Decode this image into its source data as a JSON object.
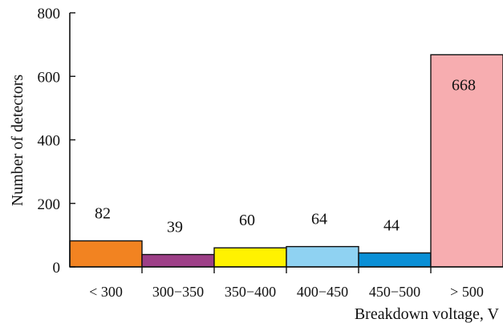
{
  "chart_data": {
    "type": "bar",
    "title": "",
    "xlabel": "Breakdown voltage, V",
    "ylabel": "Number of detectors",
    "ylim": [
      0,
      800
    ],
    "yticks": [
      "0",
      "200",
      "400",
      "600",
      "800"
    ],
    "categories": [
      "< 300",
      "300−350",
      "350−400",
      "400−450",
      "450−500",
      "> 500"
    ],
    "values": [
      82,
      39,
      60,
      64,
      44,
      668
    ],
    "data_labels": [
      "82",
      "39",
      "60",
      "64",
      "44",
      "668"
    ],
    "colors": [
      "#f28321",
      "#9d3f87",
      "#fff200",
      "#8fd2f2",
      "#0a8fd6",
      "#f7adb0"
    ],
    "grid": false,
    "legend": "none"
  }
}
